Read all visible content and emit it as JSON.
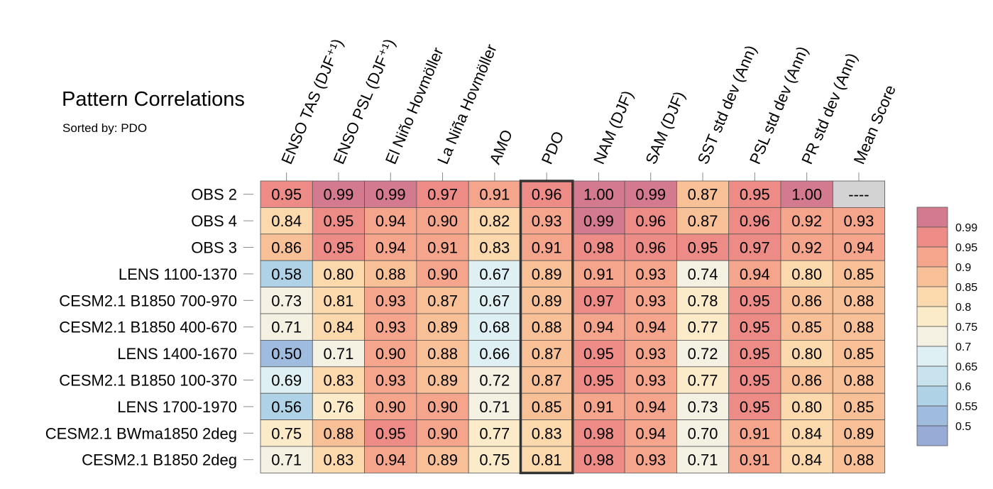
{
  "title": "Pattern Correlations",
  "subtitle": "Sorted by: PDO",
  "chart_data": {
    "type": "heatmap",
    "title": "Pattern Correlations",
    "subtitle": "Sorted by: PDO",
    "columns": [
      "ENSO TAS (DJF⁺¹)",
      "ENSO PSL (DJF⁺¹)",
      "El Niño Hovmöller",
      "La Niña Hovmöller",
      "AMO",
      "PDO",
      "NAM (DJF)",
      "SAM (DJF)",
      "SST std dev (Ann)",
      "PSL std dev (Ann)",
      "PR std dev (Ann)",
      "Mean Score"
    ],
    "rows": [
      "OBS 2",
      "OBS 4",
      "OBS 3",
      "LENS 1100-1370",
      "CESM2.1 B1850 700-970",
      "CESM2.1 B1850 400-670",
      "LENS 1400-1670",
      "CESM2.1 B1850 100-370",
      "LENS 1700-1970",
      "CESM2.1 BWma1850 2deg",
      "CESM2.1 B1850 2deg"
    ],
    "values": [
      [
        "0.95",
        "0.99",
        "0.99",
        "0.97",
        "0.91",
        "0.96",
        "1.00",
        "0.99",
        "0.87",
        "0.95",
        "1.00",
        "----"
      ],
      [
        "0.84",
        "0.95",
        "0.94",
        "0.90",
        "0.82",
        "0.93",
        "0.99",
        "0.96",
        "0.87",
        "0.96",
        "0.92",
        "0.93"
      ],
      [
        "0.86",
        "0.95",
        "0.94",
        "0.91",
        "0.83",
        "0.91",
        "0.98",
        "0.96",
        "0.95",
        "0.97",
        "0.92",
        "0.94"
      ],
      [
        "0.58",
        "0.80",
        "0.88",
        "0.90",
        "0.67",
        "0.89",
        "0.91",
        "0.93",
        "0.74",
        "0.94",
        "0.80",
        "0.85"
      ],
      [
        "0.73",
        "0.81",
        "0.93",
        "0.87",
        "0.67",
        "0.89",
        "0.97",
        "0.93",
        "0.78",
        "0.95",
        "0.86",
        "0.88"
      ],
      [
        "0.71",
        "0.84",
        "0.93",
        "0.89",
        "0.68",
        "0.88",
        "0.94",
        "0.94",
        "0.77",
        "0.95",
        "0.85",
        "0.88"
      ],
      [
        "0.50",
        "0.71",
        "0.90",
        "0.88",
        "0.66",
        "0.87",
        "0.95",
        "0.93",
        "0.72",
        "0.95",
        "0.80",
        "0.85"
      ],
      [
        "0.69",
        "0.83",
        "0.93",
        "0.89",
        "0.72",
        "0.87",
        "0.95",
        "0.93",
        "0.77",
        "0.95",
        "0.86",
        "0.88"
      ],
      [
        "0.56",
        "0.76",
        "0.90",
        "0.90",
        "0.71",
        "0.85",
        "0.91",
        "0.94",
        "0.73",
        "0.95",
        "0.80",
        "0.85"
      ],
      [
        "0.75",
        "0.88",
        "0.95",
        "0.90",
        "0.77",
        "0.83",
        "0.98",
        "0.94",
        "0.70",
        "0.91",
        "0.84",
        "0.89"
      ],
      [
        "0.71",
        "0.83",
        "0.94",
        "0.89",
        "0.75",
        "0.81",
        "0.98",
        "0.93",
        "0.71",
        "0.91",
        "0.84",
        "0.88"
      ]
    ],
    "highlighted_column": "PDO",
    "colorbar": {
      "labels": [
        "0.99",
        "0.95",
        "0.9",
        "0.85",
        "0.8",
        "0.75",
        "0.7",
        "0.65",
        "0.6",
        "0.55",
        "0.5"
      ],
      "colors": [
        "#d47a8f",
        "#ed8c86",
        "#f4a58c",
        "#f8c097",
        "#fbd9ad",
        "#fcebc9",
        "#f4f1e3",
        "#dff0f4",
        "#c8e3ee",
        "#b0d2e7",
        "#9fbcdf",
        "#98aad6"
      ]
    },
    "bins": [
      {
        "min": 0.99,
        "color": "#d47a8f"
      },
      {
        "min": 0.95,
        "color": "#ed8c86"
      },
      {
        "min": 0.9,
        "color": "#f4a58c"
      },
      {
        "min": 0.85,
        "color": "#f8c097"
      },
      {
        "min": 0.8,
        "color": "#fbd9ad"
      },
      {
        "min": 0.75,
        "color": "#fcebc9"
      },
      {
        "min": 0.7,
        "color": "#f4f1e3"
      },
      {
        "min": 0.65,
        "color": "#dff0f4"
      },
      {
        "min": 0.6,
        "color": "#c8e3ee"
      },
      {
        "min": 0.55,
        "color": "#b0d2e7"
      },
      {
        "min": 0.5,
        "color": "#9fbcdf"
      },
      {
        "min": 0.0,
        "color": "#98aad6"
      }
    ],
    "missing_color": "#d3d3d3"
  }
}
